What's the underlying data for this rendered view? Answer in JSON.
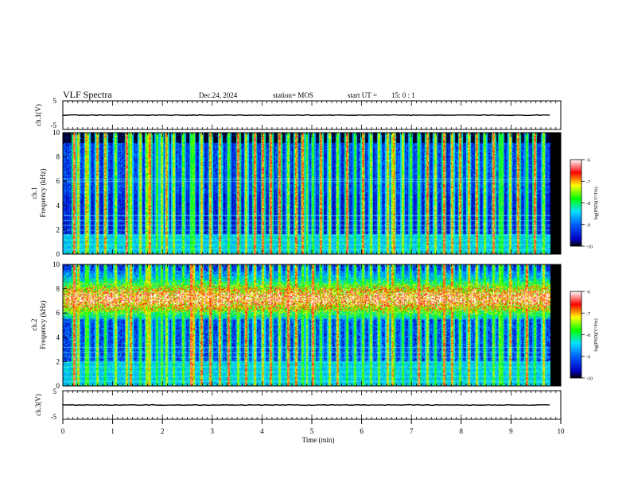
{
  "header": {
    "title": "VLF Spectra",
    "date": "Dec.24, 2024",
    "station": "station= MOS",
    "start_label": "start  UT  =",
    "start_time": "15: 0  : 1"
  },
  "chart_data": {
    "type": "heatmap",
    "title": "VLF Spectra",
    "xlabel": "Time  (min)",
    "xlim": [
      0,
      10
    ],
    "xticks": [
      "0",
      "1",
      "2",
      "3",
      "4",
      "5",
      "6",
      "7",
      "8",
      "9",
      "10"
    ],
    "data_end_min": 9.8,
    "panels": [
      {
        "id": "ch1-voltage",
        "ylabel": "ch.1(V)",
        "ylim": [
          -5,
          5
        ],
        "yticks": [
          "5",
          "-5"
        ],
        "trace_value": 0.0
      },
      {
        "id": "ch1-spectrogram",
        "ylabel": "ch.1",
        "ylabel2": "Frequency (kHz)",
        "ylim": [
          0,
          10
        ],
        "yticks": [
          "0",
          "2",
          "4",
          "6",
          "8",
          "10"
        ],
        "noise_band_khz": [
          0,
          1.6
        ],
        "band_top_khz": 9.2,
        "band_intensity": 0.3,
        "hum_lines_khz": [
          0.4,
          0.8,
          1.2,
          1.6,
          2.0,
          2.4,
          2.8,
          3.2,
          6.0,
          6.2
        ]
      },
      {
        "id": "ch2-spectrogram",
        "ylabel": "ch.2",
        "ylabel2": "Frequency (kHz)",
        "ylim": [
          0,
          10
        ],
        "yticks": [
          "0",
          "2",
          "4",
          "6",
          "8",
          "10"
        ],
        "noise_band_khz": [
          0,
          2.0
        ],
        "chorus_band_khz": [
          5.5,
          9.5
        ],
        "chorus_peak_khz": 7.2,
        "hum_lines_khz": [
          0.4,
          0.8,
          1.2,
          1.6,
          2.0,
          2.4,
          2.8,
          3.2
        ]
      },
      {
        "id": "ch3-voltage",
        "ylabel": "ch.3(V)",
        "ylim": [
          -5,
          5
        ],
        "yticks": [
          "5",
          "-5"
        ],
        "trace_value": 0.0
      }
    ],
    "sferic_times_min": [
      0.22,
      0.3,
      0.47,
      0.5,
      0.68,
      0.85,
      1.05,
      1.28,
      1.36,
      1.55,
      1.68,
      1.72,
      1.75,
      1.88,
      1.98,
      2.08,
      2.22,
      2.42,
      2.58,
      2.62,
      2.78,
      2.96,
      3.15,
      3.33,
      3.52,
      3.68,
      3.85,
      4.02,
      4.18,
      4.35,
      4.52,
      4.68,
      4.82,
      4.9,
      5.02,
      5.18,
      5.35,
      5.52,
      5.7,
      5.86,
      6.02,
      6.18,
      6.35,
      6.52,
      6.62,
      6.65,
      6.82,
      6.98,
      7.15,
      7.32,
      7.48,
      7.65,
      7.82,
      7.98,
      8.15,
      8.32,
      8.48,
      8.65,
      8.78,
      8.82,
      8.98,
      9.15,
      9.32,
      9.48,
      9.65
    ],
    "colorbar": {
      "label": "log(PSD)(V²/Hz)",
      "range": [
        -10,
        -6
      ],
      "ticks": [
        "-6",
        "-7",
        "-8",
        "-9",
        "-10"
      ],
      "colors": [
        "#000000",
        "#0000ff",
        "#00ffff",
        "#00ff00",
        "#ffff00",
        "#ff0000",
        "#ffffff"
      ]
    }
  }
}
